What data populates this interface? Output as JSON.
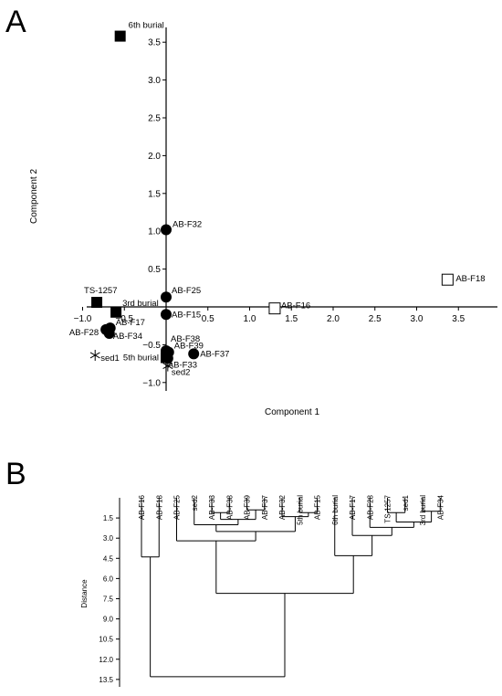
{
  "panels": {
    "a": "A",
    "b": "B"
  },
  "chart_data": [
    {
      "type": "scatter",
      "title": "",
      "xlabel": "Component 1",
      "ylabel": "Component 2",
      "xlim": [
        -1.1,
        4.0
      ],
      "ylim": [
        -1.1,
        3.75
      ],
      "x_ticks": [
        "-1.0",
        "-0.5",
        "0.5",
        "1.0",
        "1.5",
        "2.0",
        "2.5",
        "3.0",
        "3.5"
      ],
      "y_ticks": [
        "-1.0",
        "-0.5",
        "0.5",
        "1.0",
        "1.5",
        "2.0",
        "2.5",
        "3.0",
        "3.5"
      ],
      "grid": false,
      "points": [
        {
          "label": "6th burial",
          "x": -0.55,
          "y": 3.58,
          "marker": "filled-square"
        },
        {
          "label": "AB-F32",
          "x": 0.0,
          "y": 1.02,
          "marker": "filled-circle"
        },
        {
          "label": "AB-F18",
          "x": 3.37,
          "y": 0.36,
          "marker": "open-square"
        },
        {
          "label": "AB-F25",
          "x": 0.0,
          "y": 0.13,
          "marker": "filled-circle"
        },
        {
          "label": "TS-1257",
          "x": -0.83,
          "y": 0.06,
          "marker": "filled-square"
        },
        {
          "label": "AB-F16",
          "x": 1.3,
          "y": -0.02,
          "marker": "open-square"
        },
        {
          "label": "3rd burial",
          "x": -0.6,
          "y": -0.07,
          "marker": "filled-square"
        },
        {
          "label": "AB-F15",
          "x": 0.0,
          "y": -0.1,
          "marker": "filled-circle"
        },
        {
          "label": "AB-F17",
          "x": -0.67,
          "y": -0.28,
          "marker": "filled-circle"
        },
        {
          "label": "AB-F28",
          "x": -0.72,
          "y": -0.3,
          "marker": "filled-circle"
        },
        {
          "label": "AB-F34",
          "x": -0.68,
          "y": -0.35,
          "marker": "filled-circle"
        },
        {
          "label": "AB-F38",
          "x": 0.0,
          "y": -0.58,
          "marker": "filled-circle"
        },
        {
          "label": "AB-F39",
          "x": 0.03,
          "y": -0.6,
          "marker": "filled-circle"
        },
        {
          "label": "AB-F37",
          "x": 0.33,
          "y": -0.62,
          "marker": "filled-circle"
        },
        {
          "label": "5th burial",
          "x": 0.0,
          "y": -0.67,
          "marker": "filled-square"
        },
        {
          "label": "AB-F33",
          "x": 0.02,
          "y": -0.68,
          "marker": "filled-circle"
        },
        {
          "label": "sed1",
          "x": -0.85,
          "y": -0.64,
          "marker": "asterisk"
        },
        {
          "label": "sed2",
          "x": 0.02,
          "y": -0.78,
          "marker": "asterisk"
        }
      ]
    },
    {
      "type": "dendrogram",
      "ylabel": "Distance",
      "y_ticks": [
        "1.5",
        "3.0",
        "4.5",
        "6.0",
        "7.5",
        "9.0",
        "10.5",
        "12.0",
        "13.5"
      ],
      "ylim": [
        0,
        14
      ],
      "leaves": [
        "AB-F16",
        "AB-F18",
        "AB-F25",
        "sed2",
        "AB-F33",
        "AB-F38",
        "AB-F39",
        "AB-F37",
        "AB-F32",
        "5th burial",
        "AB-F15",
        "6th burial",
        "AB-F17",
        "AB-F28",
        "TS-1257",
        "sed1",
        "3rd burial",
        "AB-F34"
      ],
      "merges": [
        {
          "left": "AB-F33",
          "right": "AB-F38",
          "height": 1.1
        },
        {
          "left": "AB-F39",
          "right": "AB-F37",
          "height": 0.9
        },
        {
          "left": "5th burial",
          "right": "AB-F15",
          "height": 1.1
        },
        {
          "left": "TS-1257",
          "right": "sed1",
          "height": 1.1
        },
        {
          "left": "3rd burial",
          "right": "AB-F34",
          "height": 1.0
        },
        {
          "left": "c0",
          "right": "c1",
          "height": 1.6,
          "id": "c5"
        },
        {
          "left": "c3",
          "right": "c4",
          "height": 1.8,
          "id": "c6"
        },
        {
          "left": "sed2",
          "right": "c5",
          "height": 2.0,
          "id": "c7"
        },
        {
          "left": "AB-F32",
          "right": "c2",
          "height": 1.4,
          "id": "c8"
        },
        {
          "left": "AB-F28",
          "right": "c6",
          "height": 2.2,
          "id": "c9"
        },
        {
          "left": "c7",
          "right": "c8",
          "height": 2.5,
          "id": "c10"
        },
        {
          "left": "AB-F17",
          "right": "c9",
          "height": 2.8,
          "id": "c11"
        },
        {
          "left": "AB-F25",
          "right": "c10",
          "height": 3.2,
          "id": "c12"
        },
        {
          "left": "6th burial",
          "right": "c11",
          "height": 4.3,
          "id": "c13"
        },
        {
          "left": "AB-F16",
          "right": "AB-F18",
          "height": 4.4,
          "id": "c14"
        },
        {
          "left": "c12",
          "right": "c13",
          "height": 7.1,
          "id": "c15"
        },
        {
          "left": "c14",
          "right": "c15",
          "height": 13.3,
          "id": "c16"
        }
      ]
    }
  ]
}
